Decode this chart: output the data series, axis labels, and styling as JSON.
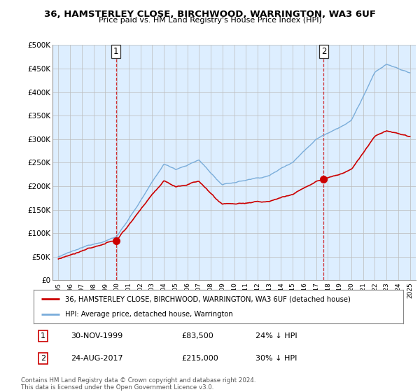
{
  "title1": "36, HAMSTERLEY CLOSE, BIRCHWOOD, WARRINGTON, WA3 6UF",
  "title2": "Price paid vs. HM Land Registry's House Price Index (HPI)",
  "ylabel_ticks": [
    "£0",
    "£50K",
    "£100K",
    "£150K",
    "£200K",
    "£250K",
    "£300K",
    "£350K",
    "£400K",
    "£450K",
    "£500K"
  ],
  "ytick_values": [
    0,
    50000,
    100000,
    150000,
    200000,
    250000,
    300000,
    350000,
    400000,
    450000,
    500000
  ],
  "ylim": [
    0,
    500000
  ],
  "xlim_start": 1994.5,
  "xlim_end": 2025.5,
  "hpi_color": "#7aadda",
  "price_color": "#cc0000",
  "plot_bg_color": "#ddeeff",
  "sale1_year": 1999.917,
  "sale1_price": 83500,
  "sale2_year": 2017.645,
  "sale2_price": 215000,
  "legend_label1": "36, HAMSTERLEY CLOSE, BIRCHWOOD, WARRINGTON, WA3 6UF (detached house)",
  "legend_label2": "HPI: Average price, detached house, Warrington",
  "table_row1": [
    "1",
    "30-NOV-1999",
    "£83,500",
    "24% ↓ HPI"
  ],
  "table_row2": [
    "2",
    "24-AUG-2017",
    "£215,000",
    "30% ↓ HPI"
  ],
  "footnote": "Contains HM Land Registry data © Crown copyright and database right 2024.\nThis data is licensed under the Open Government Licence v3.0.",
  "background_color": "#ffffff",
  "grid_color": "#bbbbbb"
}
